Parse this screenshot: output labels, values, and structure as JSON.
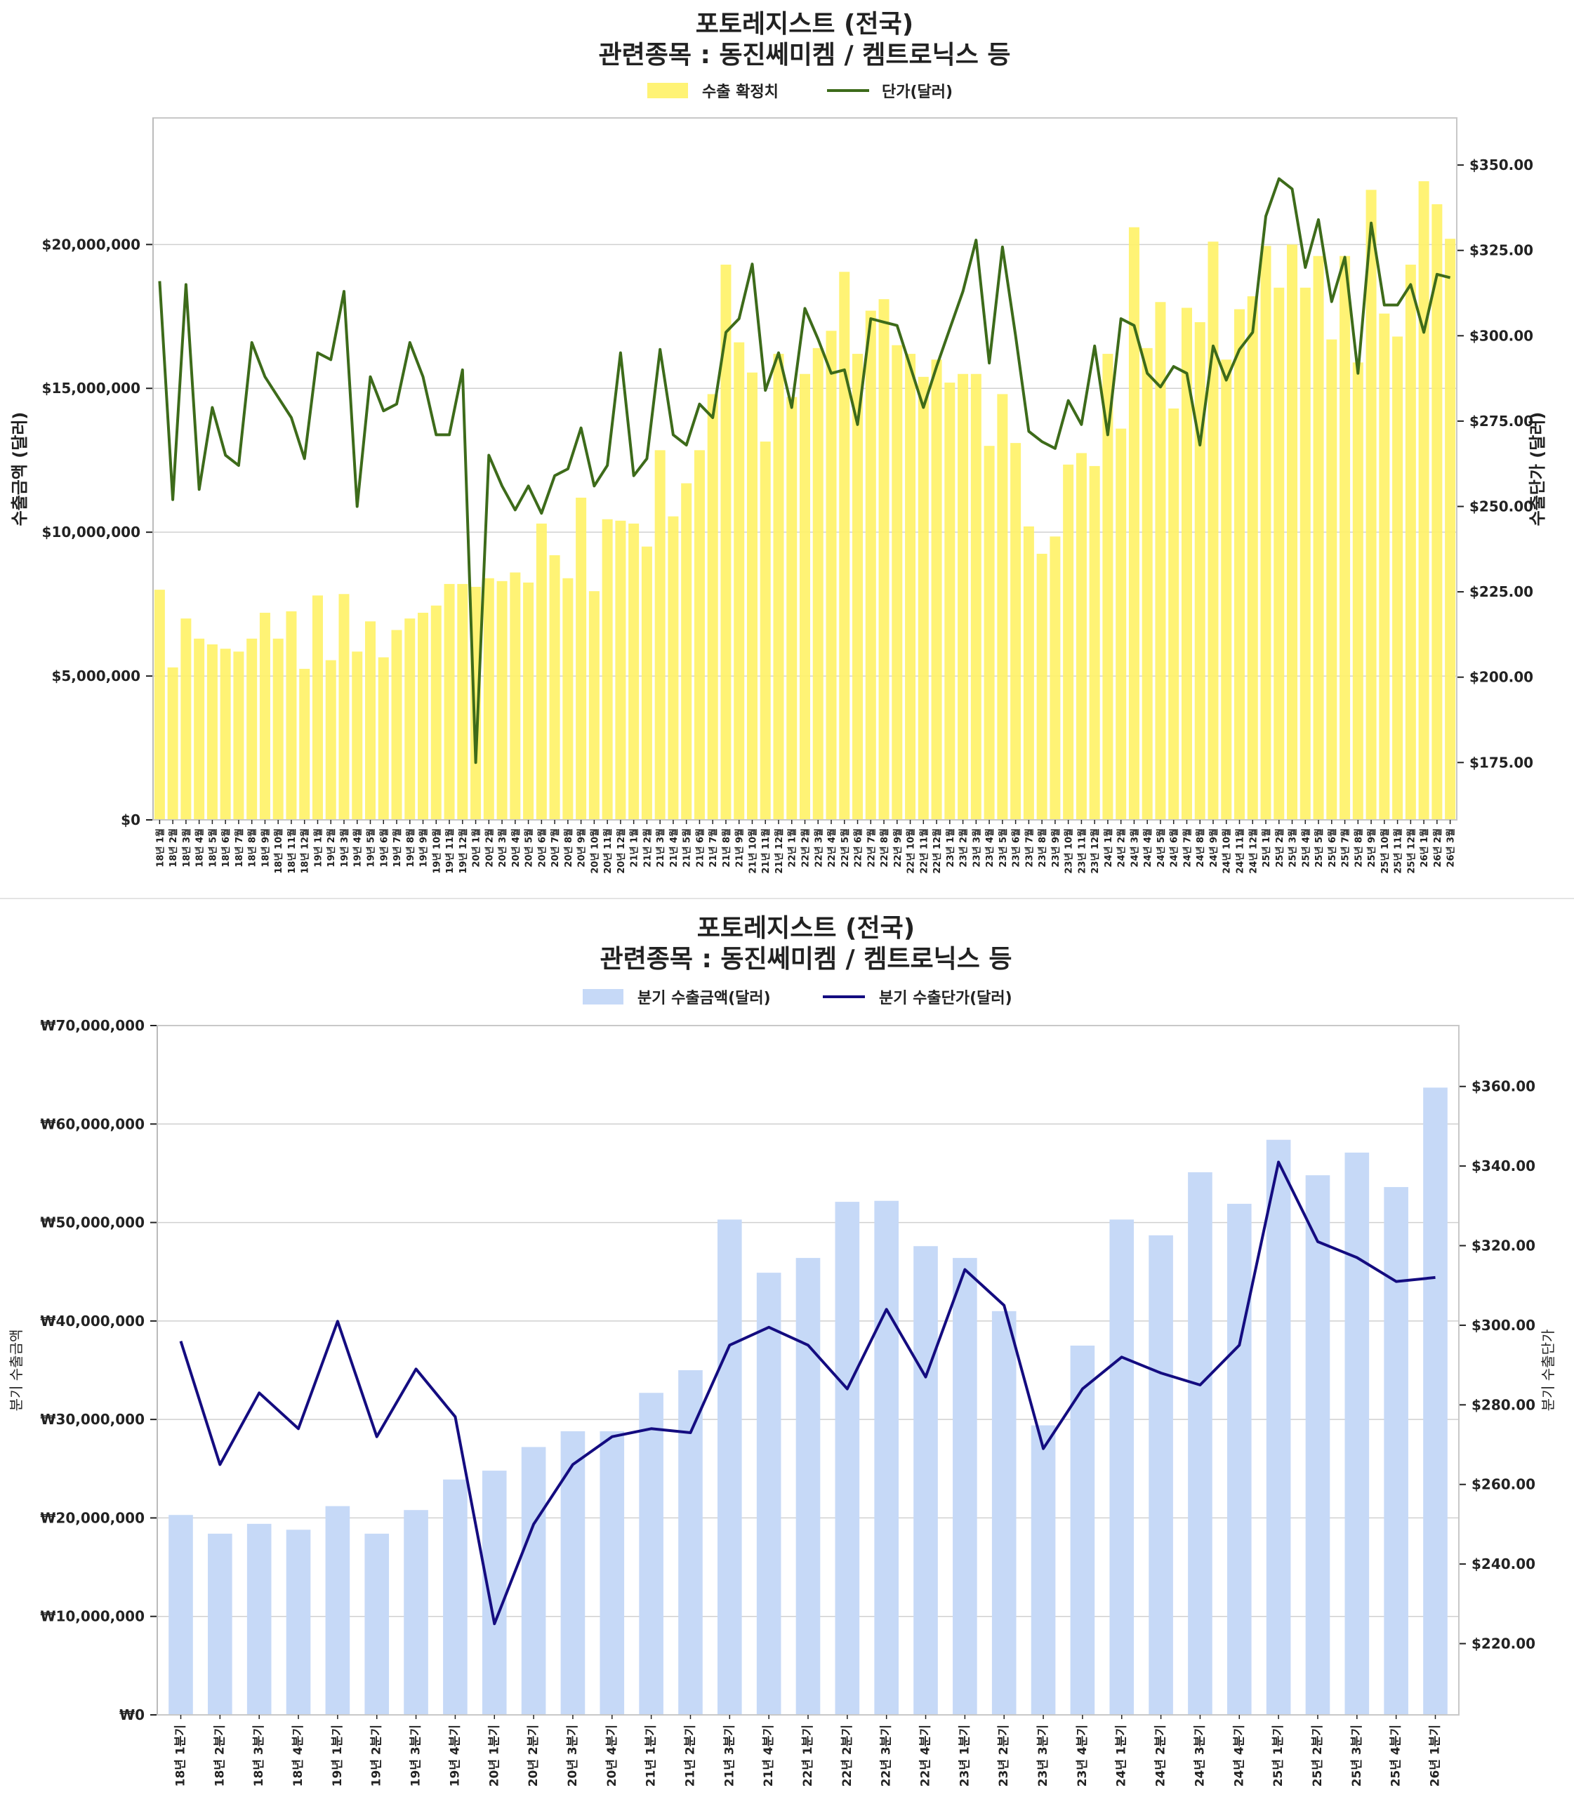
{
  "chart_data": [
    {
      "type": "bar+line",
      "title": [
        "포토레지스트 (전국)",
        "관련종목 : 동진쎄미켐 / 켐트로닉스 등"
      ],
      "legend": [
        "수출 확정치",
        "단가(달러)"
      ],
      "legend_placement": "top-center",
      "ylabel": "수출금액 (달러)",
      "y2label": "수출단가 (달러)",
      "ylim": [
        0,
        24400000
      ],
      "y2lim": [
        158.2,
        363.8
      ],
      "yticks": [
        "$0",
        "$5,000,000",
        "$10,000,000",
        "$15,000,000",
        "$20,000,000"
      ],
      "ytick_values": [
        0,
        5000000,
        10000000,
        15000000,
        20000000
      ],
      "y2ticks": [
        "$175.00",
        "$200.00",
        "$225.00",
        "$250.00",
        "$275.00",
        "$300.00",
        "$325.00",
        "$350.00"
      ],
      "y2tick_values": [
        175,
        200,
        225,
        250,
        275,
        300,
        325,
        350
      ],
      "grid": true,
      "colors": {
        "bar": "#fff266",
        "line": "#3d6b1a"
      },
      "categories": [
        "18년 1월",
        "18년 2월",
        "18년 3월",
        "18년 4월",
        "18년 5월",
        "18년 6월",
        "18년 7월",
        "18년 8월",
        "18년 9월",
        "18년 10월",
        "18년 11월",
        "18년 12월",
        "19년 1월",
        "19년 2월",
        "19년 3월",
        "19년 4월",
        "19년 5월",
        "19년 6월",
        "19년 7월",
        "19년 8월",
        "19년 9월",
        "19년 10월",
        "19년 11월",
        "19년 12월",
        "20년 1월",
        "20년 2월",
        "20년 3월",
        "20년 4월",
        "20년 5월",
        "20년 6월",
        "20년 7월",
        "20년 8월",
        "20년 9월",
        "20년 10월",
        "20년 11월",
        "20년 12월",
        "21년 1월",
        "21년 2월",
        "21년 3월",
        "21년 4월",
        "21년 5월",
        "21년 6월",
        "21년 7월",
        "21년 8월",
        "21년 9월",
        "21년 10월",
        "21년 11월",
        "21년 12월",
        "22년 1월",
        "22년 2월",
        "22년 3월",
        "22년 4월",
        "22년 5월",
        "22년 6월",
        "22년 7월",
        "22년 8월",
        "22년 9월",
        "22년 10월",
        "22년 11월",
        "22년 12월",
        "23년 1월",
        "23년 2월",
        "23년 3월",
        "23년 4월",
        "23년 5월",
        "23년 6월",
        "23년 7월",
        "23년 8월",
        "23년 9월",
        "23년 10월",
        "23년 11월",
        "23년 12월",
        "24년 1월",
        "24년 2월",
        "24년 3월",
        "24년 4월",
        "24년 5월",
        "24년 6월",
        "24년 7월",
        "24년 8월",
        "24년 9월",
        "24년 10월",
        "24년 11월",
        "24년 12월",
        "25년 1월",
        "25년 2월",
        "25년 3월",
        "25년 4월",
        "25년 5월",
        "25년 6월",
        "25년 7월",
        "25년 8월",
        "25년 9월",
        "25년 10월",
        "25년 11월",
        "25년 12월",
        "26년 1월",
        "26년 2월",
        "26년 3월"
      ],
      "series": [
        {
          "name": "수출 확정치",
          "type": "bar",
          "axis": "left",
          "values": [
            8000000,
            5300000,
            7000000,
            6300000,
            6100000,
            5950000,
            5850000,
            6300000,
            7200000,
            6300000,
            7250000,
            5250000,
            7800000,
            5550000,
            7850000,
            5850000,
            6900000,
            5650000,
            6600000,
            7000000,
            7200000,
            7450000,
            8200000,
            8200000,
            8100000,
            8400000,
            8300000,
            8600000,
            8250000,
            10300000,
            9200000,
            8400000,
            11200000,
            7950000,
            10450000,
            10400000,
            10300000,
            9500000,
            12850000,
            10550000,
            11700000,
            12850000,
            14800000,
            19300000,
            16600000,
            15550000,
            13150000,
            16200000,
            14700000,
            15500000,
            16400000,
            17000000,
            19050000,
            16200000,
            17700000,
            18100000,
            16500000,
            16200000,
            15400000,
            16000000,
            15200000,
            15500000,
            15500000,
            13000000,
            14800000,
            13100000,
            10200000,
            9250000,
            9850000,
            12350000,
            12750000,
            12300000,
            16200000,
            13600000,
            20600000,
            16400000,
            18000000,
            14300000,
            17800000,
            17300000,
            20100000,
            16000000,
            17750000,
            18200000,
            19950000,
            18500000,
            20000000,
            18500000,
            19600000,
            16700000,
            19600000,
            15900000,
            21900000,
            17600000,
            16800000,
            19300000,
            22200000,
            21400000,
            20200000
          ]
        },
        {
          "name": "단가(달러)",
          "type": "line",
          "axis": "right",
          "values": [
            316,
            252,
            315,
            255,
            279,
            265,
            262,
            298,
            288,
            282,
            276,
            264,
            295,
            293,
            313,
            250,
            288,
            278,
            280,
            298,
            288,
            271,
            271,
            290,
            175,
            265,
            256,
            249,
            256,
            248,
            259,
            261,
            273,
            256,
            262,
            295,
            259,
            264,
            296,
            271,
            268,
            280,
            276,
            301,
            305,
            321,
            284,
            295,
            279,
            308,
            299,
            289,
            290,
            274,
            305,
            304,
            303,
            291,
            279,
            291,
            302,
            313,
            328,
            292,
            326,
            300,
            272,
            269,
            267,
            281,
            274,
            297,
            271,
            305,
            303,
            289,
            285,
            291,
            289,
            268,
            297,
            287,
            296,
            301,
            335,
            346,
            343,
            320,
            334,
            310,
            323,
            289,
            333,
            309,
            309,
            315,
            301,
            318,
            317
          ]
        }
      ]
    },
    {
      "type": "bar+line",
      "title": [
        "포토레지스트 (전국)",
        "관련종목 : 동진쎄미켐 / 켐트로닉스 등"
      ],
      "legend": [
        "분기 수출금액(달러)",
        "분기 수출단가(달러)"
      ],
      "legend_placement": "top-center",
      "ylabel": "분기 수출금액",
      "y2label": "분기 수출단가",
      "ylim": [
        0,
        70000000
      ],
      "y2lim": [
        202.1,
        375.3
      ],
      "yticks": [
        "₩0",
        "₩10,000,000",
        "₩20,000,000",
        "₩30,000,000",
        "₩40,000,000",
        "₩50,000,000",
        "₩60,000,000",
        "₩70,000,000"
      ],
      "ytick_values": [
        0,
        10000000,
        20000000,
        30000000,
        40000000,
        50000000,
        60000000,
        70000000
      ],
      "y2ticks": [
        "$220.00",
        "$240.00",
        "$260.00",
        "$280.00",
        "$300.00",
        "$320.00",
        "$340.00",
        "$360.00"
      ],
      "y2tick_values": [
        220,
        240,
        260,
        280,
        300,
        320,
        340,
        360
      ],
      "grid": true,
      "colors": {
        "bar": "#c6d9f7",
        "line": "#140c80"
      },
      "categories": [
        "18년 1분기",
        "18년 2분기",
        "18년 3분기",
        "18년 4분기",
        "19년 1분기",
        "19년 2분기",
        "19년 3분기",
        "19년 4분기",
        "20년 1분기",
        "20년 2분기",
        "20년 3분기",
        "20년 4분기",
        "21년 1분기",
        "21년 2분기",
        "21년 3분기",
        "21년 4분기",
        "22년 1분기",
        "22년 2분기",
        "22년 3분기",
        "22년 4분기",
        "23년 1분기",
        "23년 2분기",
        "23년 3분기",
        "23년 4분기",
        "24년 1분기",
        "24년 2분기",
        "24년 3분기",
        "24년 4분기",
        "25년 1분기",
        "25년 2분기",
        "25년 3분기",
        "25년 4분기",
        "26년 1분기"
      ],
      "series": [
        {
          "name": "분기 수출금액(달러)",
          "type": "bar",
          "axis": "left",
          "values": [
            20300000,
            18400000,
            19400000,
            18800000,
            21200000,
            18400000,
            20800000,
            23900000,
            24800000,
            27200000,
            28800000,
            28800000,
            32700000,
            35000000,
            50300000,
            44900000,
            46400000,
            52100000,
            52200000,
            47600000,
            46400000,
            41000000,
            29400000,
            37500000,
            50300000,
            48700000,
            55100000,
            51900000,
            58400000,
            54800000,
            57100000,
            53600000,
            63700000
          ]
        },
        {
          "name": "분기 수출단가(달러)",
          "type": "line",
          "axis": "right",
          "values": [
            296,
            265,
            283,
            274,
            301,
            272,
            289,
            277,
            225,
            250,
            265,
            272,
            274,
            273,
            295,
            299.5,
            295,
            284,
            304,
            287,
            314,
            305,
            269,
            284,
            292,
            288,
            285,
            295,
            341,
            321,
            317,
            311,
            312
          ]
        }
      ]
    }
  ]
}
